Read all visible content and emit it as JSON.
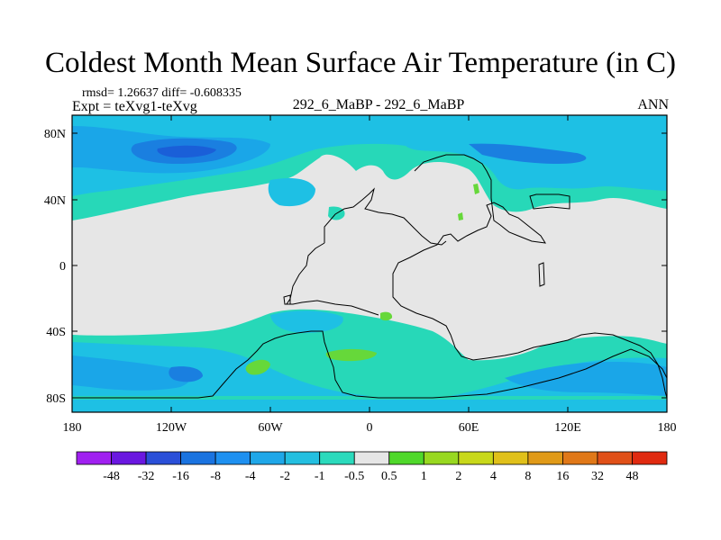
{
  "title": "Coldest Month Mean Surface Air Temperature (in C)",
  "stats": "rmsd= 1.26637 diff= -0.608335",
  "experiment": "Expt = teXvg1-teXvg",
  "case_label": "292_6_MaBP - 292_6_MaBP",
  "period_label": "ANN",
  "map": {
    "x_ticks": [
      "180",
      "120W",
      "60W",
      "0",
      "60E",
      "120E",
      "180"
    ],
    "y_ticks": [
      "80N",
      "40N",
      "0",
      "40S",
      "80S"
    ]
  },
  "colorbar": {
    "labels": [
      "-48",
      "-32",
      "-16",
      "-8",
      "-4",
      "-2",
      "-1",
      "-0.5",
      "0.5",
      "1",
      "2",
      "4",
      "8",
      "16",
      "32",
      "48"
    ],
    "colors": [
      "#a020f0",
      "#6a17e0",
      "#2a4fd8",
      "#1a73e0",
      "#1e90f0",
      "#1fa7e8",
      "#24bfe0",
      "#2bdabc",
      "#e6e6e6",
      "#4fd82a",
      "#98d820",
      "#c8d81a",
      "#e0c01a",
      "#e09a18",
      "#e07818",
      "#e05018",
      "#e02a10"
    ]
  },
  "palette": {
    "land_neutral": "#e6e6e6",
    "ocean_light": "#27d8b8",
    "ocean_cyan": "#1ec0e4",
    "ocean_mid": "#1aa6e8",
    "ocean_blue": "#1a7fe0",
    "ocean_dark": "#1a5fd8",
    "positive_green": "#66d83a"
  }
}
